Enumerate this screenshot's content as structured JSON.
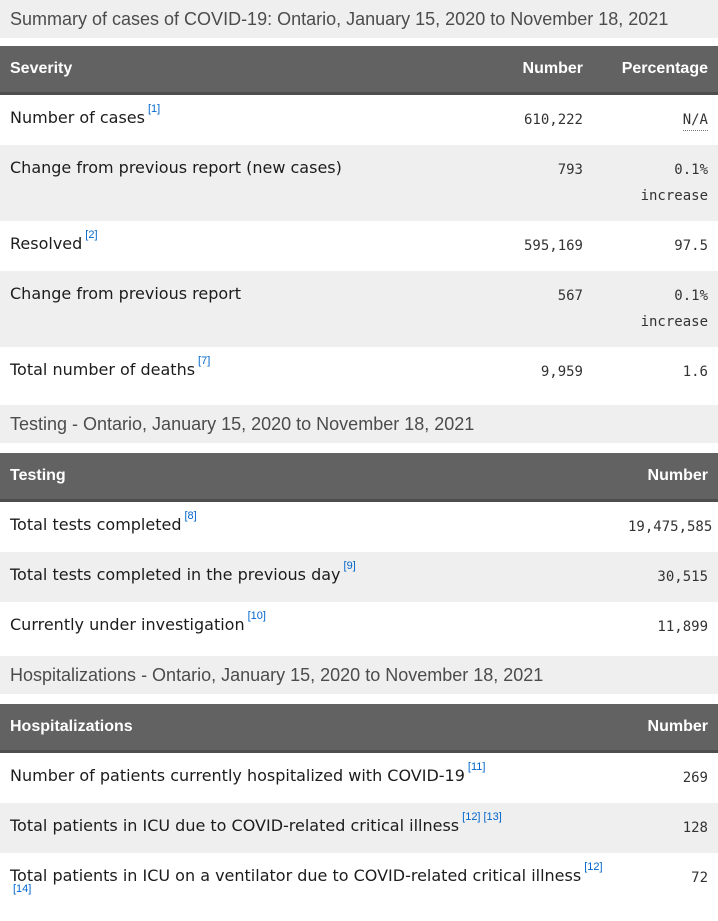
{
  "colors": {
    "table_header_bg": "#626262",
    "table_header_border": "#4e4e4e",
    "stripe_bg": "#efefef",
    "heading_band_bg": "#efefef",
    "link_blue": "#0066cc"
  },
  "summary": {
    "heading": "Summary of cases of COVID-19: Ontario, January 15, 2020 to November 18, 2021",
    "columns": [
      "Severity",
      "Number",
      "Percentage"
    ],
    "rows": [
      {
        "label": "Number of cases",
        "footnotes": [
          "[1]"
        ],
        "number": "610,222",
        "percentage": "N/A"
      },
      {
        "label": "Change from previous report (new cases)",
        "footnotes": [],
        "number": "793",
        "percentage": "0.1%\nincrease"
      },
      {
        "label": "Resolved",
        "footnotes": [
          "[2]"
        ],
        "number": "595,169",
        "percentage": "97.5"
      },
      {
        "label": "Change from previous report",
        "footnotes": [],
        "number": "567",
        "percentage": "0.1%\nincrease"
      },
      {
        "label": "Total number of deaths",
        "footnotes": [
          "[7]"
        ],
        "number": "9,959",
        "percentage": "1.6"
      }
    ]
  },
  "testing": {
    "heading": "Testing - Ontario, January 15, 2020 to November 18, 2021",
    "columns": [
      "Testing",
      "Number"
    ],
    "rows": [
      {
        "label": "Total tests completed",
        "footnotes": [
          "[8]"
        ],
        "number": "19,475,585"
      },
      {
        "label": "Total tests completed in the previous day",
        "footnotes": [
          "[9]"
        ],
        "number": "30,515"
      },
      {
        "label": "Currently under investigation",
        "footnotes": [
          "[10]"
        ],
        "number": "11,899"
      }
    ]
  },
  "hospitalizations": {
    "heading": "Hospitalizations - Ontario, January 15, 2020 to November 18, 2021",
    "columns": [
      "Hospitalizations",
      "Number"
    ],
    "rows": [
      {
        "label": "Number of patients currently hospitalized with COVID-19",
        "footnotes": [
          "[11]"
        ],
        "number": "269"
      },
      {
        "label": "Total patients in ICU due to COVID-related critical illness",
        "footnotes": [
          "[12]",
          "[13]"
        ],
        "number": "128"
      },
      {
        "label": "Total patients in ICU on a ventilator due to COVID-related critical illness",
        "footnotes": [
          "[12]",
          "[14]"
        ],
        "number": "72"
      }
    ]
  }
}
